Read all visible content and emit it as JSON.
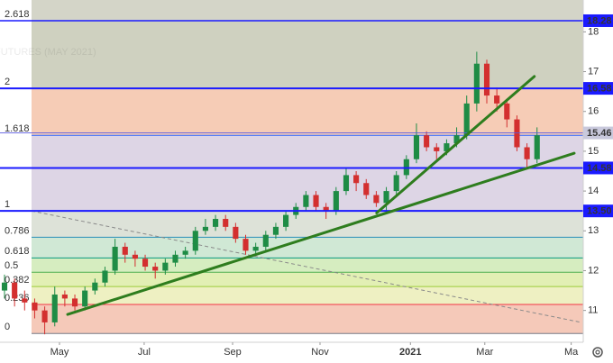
{
  "chart_data": {
    "type": "candlestick",
    "watermark": "FUTURES (MAY 2021)",
    "x": [
      0,
      1,
      2,
      3,
      4,
      5,
      6,
      7,
      8,
      9,
      10,
      11,
      12,
      13,
      14,
      15,
      16,
      17,
      18,
      19,
      20,
      21,
      22,
      23,
      24,
      25,
      26,
      27,
      28,
      29,
      30,
      31,
      32,
      33,
      34,
      35,
      36,
      37,
      38,
      39,
      40,
      41,
      42,
      43,
      44,
      45,
      46,
      47,
      48,
      49,
      50,
      51,
      52,
      53
    ],
    "open": [
      11.5,
      11.7,
      11.3,
      11.2,
      11.0,
      10.7,
      11.4,
      11.3,
      11.1,
      11.5,
      11.7,
      12.0,
      12.6,
      12.4,
      12.3,
      12.1,
      12.0,
      12.2,
      12.4,
      12.5,
      13.0,
      13.1,
      13.3,
      13.1,
      12.8,
      12.5,
      12.6,
      12.9,
      13.1,
      13.4,
      13.6,
      13.9,
      13.6,
      13.5,
      14.0,
      14.4,
      14.2,
      13.9,
      13.7,
      14.0,
      14.4,
      14.8,
      15.4,
      15.1,
      15.0,
      15.2,
      15.4,
      16.2,
      17.2,
      16.4,
      16.2,
      15.8,
      15.1,
      14.8
    ],
    "high": [
      11.9,
      11.8,
      11.5,
      11.3,
      11.1,
      11.6,
      11.5,
      11.4,
      11.6,
      11.8,
      12.1,
      12.8,
      12.7,
      12.5,
      12.4,
      12.2,
      12.3,
      12.5,
      12.6,
      13.1,
      13.3,
      13.4,
      13.4,
      13.2,
      12.9,
      12.7,
      13.0,
      13.2,
      13.5,
      13.7,
      14.0,
      14.0,
      13.7,
      14.1,
      14.6,
      14.5,
      14.3,
      14.0,
      14.1,
      14.5,
      14.9,
      15.7,
      15.5,
      15.2,
      15.3,
      15.6,
      16.4,
      17.5,
      17.3,
      16.6,
      16.3,
      15.9,
      15.2,
      15.6
    ],
    "low": [
      11.3,
      11.1,
      11.0,
      10.8,
      10.4,
      10.6,
      11.1,
      11.0,
      11.0,
      11.4,
      11.6,
      11.9,
      12.2,
      12.1,
      12.0,
      11.8,
      11.9,
      12.1,
      12.3,
      12.4,
      12.9,
      13.0,
      13.0,
      12.7,
      12.4,
      12.4,
      12.5,
      12.8,
      13.0,
      13.3,
      13.5,
      13.5,
      13.3,
      13.4,
      13.9,
      14.0,
      13.8,
      13.6,
      13.5,
      13.9,
      14.3,
      14.7,
      15.0,
      14.8,
      14.9,
      15.1,
      15.3,
      16.0,
      16.2,
      16.0,
      15.6,
      15.0,
      14.6,
      14.7
    ],
    "close": [
      11.7,
      11.3,
      11.2,
      11.0,
      10.7,
      11.4,
      11.3,
      11.1,
      11.5,
      11.7,
      12.0,
      12.6,
      12.4,
      12.3,
      12.1,
      12.0,
      12.2,
      12.4,
      12.5,
      13.0,
      13.1,
      13.3,
      13.1,
      12.8,
      12.5,
      12.6,
      12.9,
      13.1,
      13.4,
      13.6,
      13.9,
      13.6,
      13.5,
      14.0,
      14.4,
      14.2,
      13.9,
      13.7,
      14.0,
      14.4,
      14.8,
      15.4,
      15.1,
      15.0,
      15.2,
      15.4,
      16.2,
      17.2,
      16.4,
      16.2,
      15.8,
      15.1,
      14.8,
      15.4
    ],
    "up_color": "#1e8c45",
    "down_color": "#d32f2f",
    "xlim": [
      -0.45,
      57.6
    ],
    "xticks": [
      {
        "value": 5.47,
        "label": "May"
      },
      {
        "value": 13.9,
        "label": "Jul"
      },
      {
        "value": 22.7,
        "label": "Sep"
      },
      {
        "value": 31.4,
        "label": "Nov"
      },
      {
        "value": 40.4,
        "label": "2021"
      },
      {
        "value": 47.8,
        "label": "Mar"
      },
      {
        "value": 56.4,
        "label": "Ma"
      }
    ],
    "ylim": [
      10.2,
      18.8
    ],
    "yticks": [
      11,
      12,
      13,
      14,
      15,
      16,
      17,
      18
    ],
    "fib_start": 2.69,
    "fib_levels": [
      {
        "value": 10.42,
        "label": "0",
        "color": "#787b86"
      },
      {
        "value": 11.15,
        "label": "0.236",
        "color": "#f23645"
      },
      {
        "value": 11.6,
        "label": "0.382",
        "color": "#9ccc3a"
      },
      {
        "value": 11.96,
        "label": "0.5",
        "color": "#4caf50"
      },
      {
        "value": 12.32,
        "label": "0.618",
        "color": "#089981"
      },
      {
        "value": 12.84,
        "label": "0.786",
        "color": "#2a8fb8"
      },
      {
        "value": 13.5,
        "label": "1",
        "color": "#787b86"
      },
      {
        "value": 15.4,
        "label": "1.618",
        "color": "#2962ff"
      },
      {
        "value": 16.58,
        "label": "2",
        "color": "#089981"
      },
      {
        "value": 18.28,
        "label": "2.618",
        "color": "#f23645"
      }
    ],
    "fib_fills": [
      "#f5c9b9",
      "#eef0c2",
      "#e2efb4",
      "#d6edc0",
      "#d0e8d5",
      "#dde2d8",
      "#ddd5e5",
      "#f6ccb6",
      "#cfd1c0",
      "#d4d5c8"
    ],
    "dashed_line": {
      "x": [
        2.69,
        57.4
      ],
      "y": [
        13.5,
        10.7
      ],
      "color": "#8a8a8a"
    },
    "trend_lines": [
      {
        "x": [
          6.28,
          56.7
        ],
        "y": [
          10.9,
          14.95
        ],
        "color": "#2e7d1e"
      },
      {
        "x": [
          37.04,
          52.73
        ],
        "y": [
          13.45,
          16.88
        ],
        "color": "#2e7d1e"
      }
    ],
    "price_lines": [
      {
        "value": 18.28,
        "label": "18.28",
        "color": "#1a1aff",
        "width": 1.5
      },
      {
        "value": 16.58,
        "label": "16.58",
        "color": "#1a1aff",
        "width": 2
      },
      {
        "value": 15.46,
        "label": "15.46",
        "color": "#5a5ae0",
        "width": 0.8
      },
      {
        "value": 14.58,
        "label": "14.58",
        "color": "#1a1aff",
        "width": 2
      },
      {
        "value": 13.5,
        "label": "13.50",
        "color": "#1a1aff",
        "width": 2
      }
    ]
  }
}
